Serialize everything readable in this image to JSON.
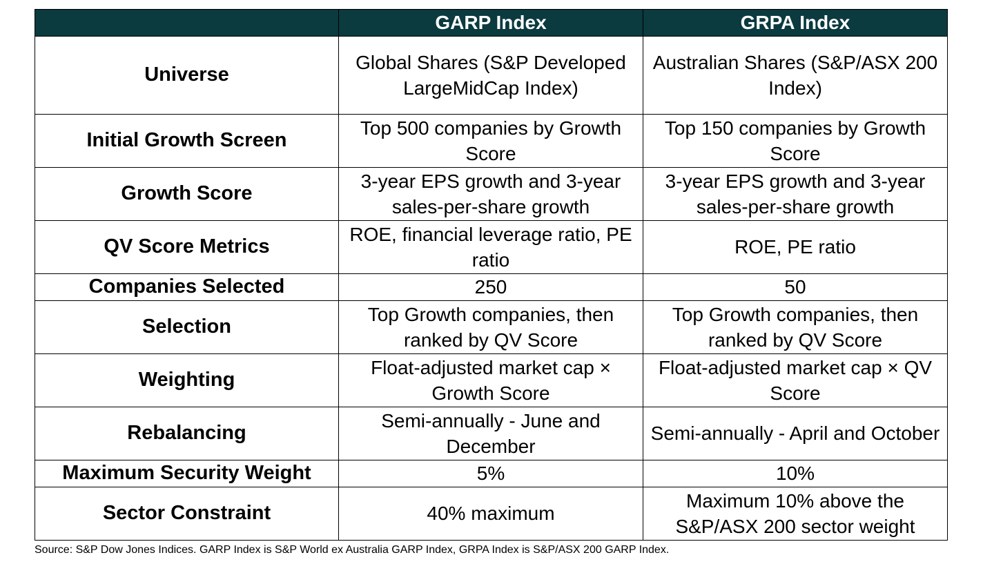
{
  "table": {
    "headers": [
      "",
      "GARP Index",
      "GRPA Index"
    ],
    "rows": [
      {
        "label": "Universe",
        "garp": "Global Shares (S&P Developed LargeMidCap Index)",
        "grpa": "Australian Shares (S&P/ASX 200 Index)"
      },
      {
        "label": "Initial Growth Screen",
        "garp": "Top 500 companies by Growth Score",
        "grpa": "Top 150 companies by Growth Score"
      },
      {
        "label": "Growth Score",
        "garp": "3-year EPS growth and 3-year sales-per-share growth",
        "grpa": "3-year EPS growth and 3-year sales-per-share growth"
      },
      {
        "label": "QV Score Metrics",
        "garp": "ROE, financial leverage ratio, PE ratio",
        "grpa": "ROE, PE ratio"
      },
      {
        "label": "Companies Selected",
        "garp": "250",
        "grpa": "50"
      },
      {
        "label": "Selection",
        "garp": "Top Growth companies, then ranked by QV Score",
        "grpa": "Top Growth companies, then ranked by QV Score"
      },
      {
        "label": "Weighting",
        "garp": "Float-adjusted market cap × Growth Score",
        "grpa": "Float-adjusted market cap × QV Score"
      },
      {
        "label": "Rebalancing",
        "garp": "Semi-annually - June and December",
        "grpa": "Semi-annually - April and October"
      },
      {
        "label": "Maximum Security Weight",
        "garp": "5%",
        "grpa": "10%"
      },
      {
        "label": "Sector Constraint",
        "garp": "40% maximum",
        "grpa": "Maximum 10% above the S&P/ASX 200 sector weight"
      }
    ]
  },
  "source_note": "Source: S&P Dow Jones Indices. GARP Index is S&P World ex Australia GARP Index, GRPA Index is S&P/ASX 200 GARP Index.",
  "colors": {
    "header_bg": "#0b3a3f",
    "header_text": "#ffffff",
    "border": "#000000"
  }
}
